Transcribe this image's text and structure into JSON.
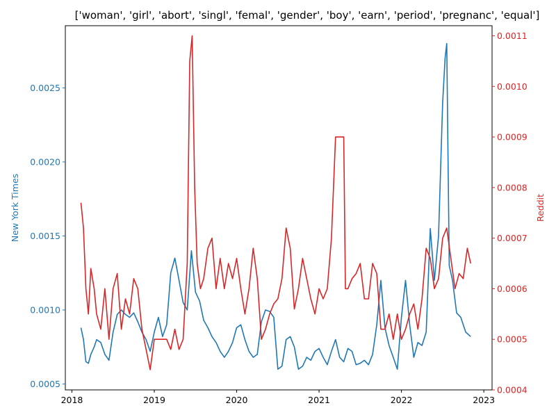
{
  "chart_data": {
    "type": "line",
    "title": "['woman', 'girl', 'abort', 'singl', 'femal', 'gender', 'boy', 'earn', 'period', 'pregnanc', 'equal']",
    "xlabel": "",
    "x_ticks": [
      "2018",
      "2019",
      "2020",
      "2021",
      "2022",
      "2023"
    ],
    "x_range": [
      2017.92,
      2023.1
    ],
    "grid": false,
    "colors": {
      "nyt": "#1f77b4",
      "reddit": "#d62728",
      "axis": "#000000"
    },
    "left_axis": {
      "label": "New York Times",
      "ylim": [
        0.00046,
        0.00292
      ],
      "ticks": [
        "0.0005",
        "0.0010",
        "0.0015",
        "0.0020",
        "0.0025"
      ]
    },
    "right_axis": {
      "label": "Reddit",
      "ylim": [
        0.0004,
        0.00112
      ],
      "ticks": [
        "0.0004",
        "0.0005",
        "0.0006",
        "0.0007",
        "0.0008",
        "0.0009",
        "0.0010",
        "0.0011"
      ]
    },
    "series": [
      {
        "name": "New York Times",
        "axis": "left",
        "x": [
          2018.11,
          2018.14,
          2018.17,
          2018.2,
          2018.23,
          2018.27,
          2018.3,
          2018.35,
          2018.4,
          2018.45,
          2018.5,
          2018.55,
          2018.6,
          2018.65,
          2018.7,
          2018.75,
          2018.8,
          2018.85,
          2018.9,
          2018.95,
          2019.0,
          2019.05,
          2019.1,
          2019.15,
          2019.2,
          2019.25,
          2019.3,
          2019.35,
          2019.4,
          2019.45,
          2019.5,
          2019.55,
          2019.6,
          2019.65,
          2019.7,
          2019.75,
          2019.8,
          2019.85,
          2019.9,
          2019.95,
          2020.0,
          2020.05,
          2020.1,
          2020.15,
          2020.2,
          2020.25,
          2020.3,
          2020.35,
          2020.4,
          2020.45,
          2020.5,
          2020.55,
          2020.6,
          2020.65,
          2020.7,
          2020.75,
          2020.8,
          2020.85,
          2020.9,
          2020.95,
          2021.0,
          2021.05,
          2021.1,
          2021.15,
          2021.2,
          2021.25,
          2021.3,
          2021.35,
          2021.4,
          2021.45,
          2021.5,
          2021.55,
          2021.6,
          2021.65,
          2021.7,
          2021.75,
          2021.8,
          2021.85,
          2021.9,
          2021.95,
          2022.0,
          2022.05,
          2022.1,
          2022.15,
          2022.2,
          2022.25,
          2022.3,
          2022.35,
          2022.4,
          2022.45,
          2022.5,
          2022.53,
          2022.55,
          2022.58,
          2022.62,
          2022.67,
          2022.72,
          2022.78,
          2022.84
        ],
        "values": [
          0.00088,
          0.0008,
          0.00065,
          0.00064,
          0.0007,
          0.00075,
          0.0008,
          0.00078,
          0.0007,
          0.00066,
          0.00085,
          0.00097,
          0.001,
          0.00097,
          0.00095,
          0.00098,
          0.00092,
          0.00085,
          0.0008,
          0.00072,
          0.00085,
          0.00095,
          0.00082,
          0.0009,
          0.00125,
          0.00135,
          0.0012,
          0.00105,
          0.001,
          0.0014,
          0.00112,
          0.00106,
          0.00093,
          0.00088,
          0.00082,
          0.00078,
          0.00072,
          0.00068,
          0.00072,
          0.00078,
          0.00088,
          0.0009,
          0.0008,
          0.00072,
          0.00068,
          0.0007,
          0.00092,
          0.001,
          0.00099,
          0.00095,
          0.0006,
          0.00062,
          0.0008,
          0.00082,
          0.00075,
          0.0006,
          0.00062,
          0.00068,
          0.00066,
          0.00072,
          0.00074,
          0.00068,
          0.00063,
          0.00072,
          0.0008,
          0.00068,
          0.00065,
          0.00074,
          0.00072,
          0.00063,
          0.00064,
          0.00066,
          0.00063,
          0.0007,
          0.0009,
          0.0012,
          0.00088,
          0.00076,
          0.00068,
          0.0006,
          0.00095,
          0.0012,
          0.0009,
          0.00068,
          0.00078,
          0.00076,
          0.00085,
          0.00155,
          0.0012,
          0.0015,
          0.0024,
          0.0027,
          0.0028,
          0.0013,
          0.0012,
          0.00098,
          0.00095,
          0.00085,
          0.00082
        ]
      },
      {
        "name": "Reddit",
        "axis": "right",
        "x": [
          2018.11,
          2018.14,
          2018.17,
          2018.2,
          2018.23,
          2018.27,
          2018.3,
          2018.35,
          2018.4,
          2018.45,
          2018.5,
          2018.55,
          2018.6,
          2018.65,
          2018.7,
          2018.75,
          2018.8,
          2018.85,
          2018.9,
          2018.95,
          2019.0,
          2019.05,
          2019.1,
          2019.15,
          2019.2,
          2019.25,
          2019.3,
          2019.35,
          2019.4,
          2019.43,
          2019.46,
          2019.49,
          2019.52,
          2019.56,
          2019.6,
          2019.65,
          2019.7,
          2019.75,
          2019.8,
          2019.85,
          2019.9,
          2019.95,
          2020.0,
          2020.05,
          2020.1,
          2020.15,
          2020.2,
          2020.25,
          2020.3,
          2020.35,
          2020.4,
          2020.45,
          2020.5,
          2020.55,
          2020.6,
          2020.65,
          2020.7,
          2020.75,
          2020.8,
          2020.85,
          2020.9,
          2020.95,
          2021.0,
          2021.05,
          2021.1,
          2021.15,
          2021.2,
          2021.25,
          2021.3,
          2021.32,
          2021.35,
          2021.4,
          2021.45,
          2021.5,
          2021.55,
          2021.6,
          2021.65,
          2021.7,
          2021.75,
          2021.8,
          2021.85,
          2021.9,
          2021.95,
          2022.0,
          2022.05,
          2022.1,
          2022.15,
          2022.2,
          2022.25,
          2022.3,
          2022.35,
          2022.4,
          2022.45,
          2022.5,
          2022.55,
          2022.6,
          2022.65,
          2022.7,
          2022.75,
          2022.8,
          2022.84
        ],
        "values": [
          0.00077,
          0.00072,
          0.0006,
          0.00055,
          0.00064,
          0.0006,
          0.00055,
          0.00052,
          0.0006,
          0.0005,
          0.0006,
          0.00063,
          0.00052,
          0.00058,
          0.00055,
          0.00062,
          0.0006,
          0.00052,
          0.00048,
          0.00044,
          0.0005,
          0.0005,
          0.0005,
          0.0005,
          0.00048,
          0.00052,
          0.00048,
          0.0005,
          0.00065,
          0.00105,
          0.0011,
          0.0008,
          0.00065,
          0.0006,
          0.00062,
          0.00068,
          0.0007,
          0.0006,
          0.00066,
          0.0006,
          0.00065,
          0.00062,
          0.00066,
          0.0006,
          0.00055,
          0.0006,
          0.00068,
          0.00062,
          0.0005,
          0.00052,
          0.00055,
          0.00057,
          0.00058,
          0.00062,
          0.00072,
          0.00068,
          0.00056,
          0.0006,
          0.00066,
          0.00062,
          0.00058,
          0.00055,
          0.0006,
          0.00058,
          0.0006,
          0.0007,
          0.0009,
          0.0009,
          0.0009,
          0.0006,
          0.0006,
          0.00062,
          0.00063,
          0.00065,
          0.00058,
          0.00058,
          0.00065,
          0.00063,
          0.00052,
          0.00052,
          0.00055,
          0.0005,
          0.00055,
          0.0005,
          0.00052,
          0.00055,
          0.00057,
          0.00052,
          0.00058,
          0.00068,
          0.00066,
          0.0006,
          0.00062,
          0.0007,
          0.00072,
          0.00066,
          0.0006,
          0.00063,
          0.00062,
          0.00068,
          0.00065
        ]
      }
    ]
  }
}
